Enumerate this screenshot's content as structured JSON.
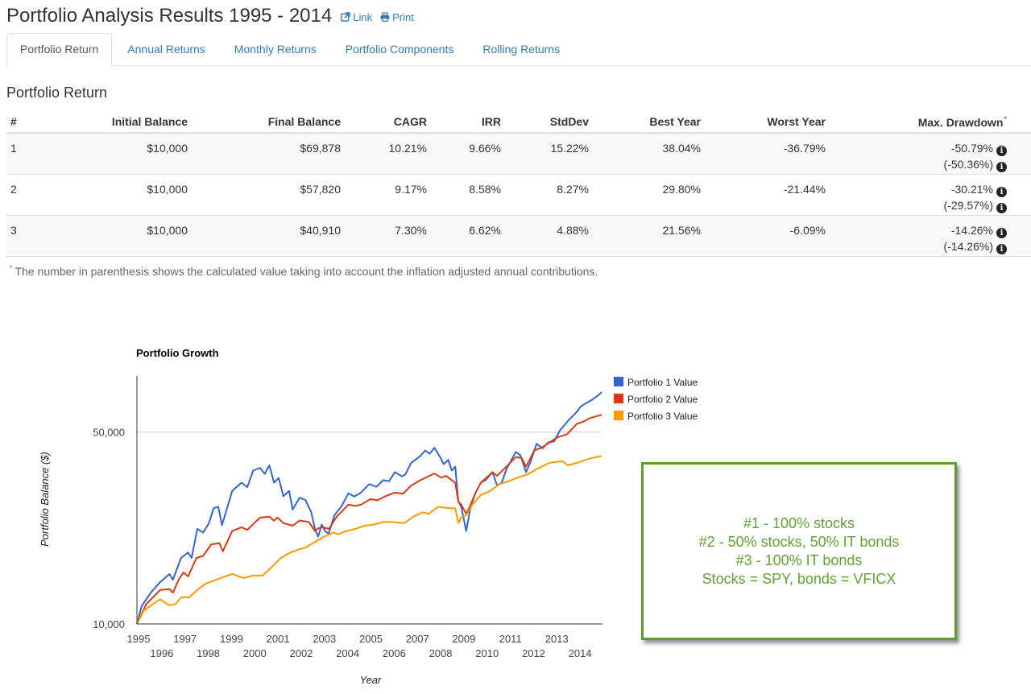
{
  "page": {
    "title": "Portfolio Analysis Results 1995 - 2014",
    "link_label": "Link",
    "link_icon": "external-link-icon",
    "print_label": "Print",
    "print_icon": "print-icon"
  },
  "tabs": [
    {
      "label": "Portfolio Return",
      "active": true
    },
    {
      "label": "Annual Returns",
      "active": false
    },
    {
      "label": "Monthly Returns",
      "active": false
    },
    {
      "label": "Portfolio Components",
      "active": false
    },
    {
      "label": "Rolling Returns",
      "active": false
    }
  ],
  "section_title": "Portfolio Return",
  "table": {
    "columns": [
      "#",
      "Initial Balance",
      "Final Balance",
      "CAGR",
      "IRR",
      "StdDev",
      "Best Year",
      "Worst Year",
      "Max. Drawdown"
    ],
    "max_drawdown_marker": "*",
    "info_icon": "info-circle-icon",
    "rows": [
      {
        "num": "1",
        "initial": "$10,000",
        "final": "$69,878",
        "cagr": "10.21%",
        "irr": "9.66%",
        "stddev": "15.22%",
        "best": "38.04%",
        "worst": "-36.79%",
        "max_dd": "-50.79%",
        "max_dd_adj": "(-50.36%)"
      },
      {
        "num": "2",
        "initial": "$10,000",
        "final": "$57,820",
        "cagr": "9.17%",
        "irr": "8.58%",
        "stddev": "8.27%",
        "best": "29.80%",
        "worst": "-21.44%",
        "max_dd": "-30.21%",
        "max_dd_adj": "(-29.57%)"
      },
      {
        "num": "3",
        "initial": "$10,000",
        "final": "$40,910",
        "cagr": "7.30%",
        "irr": "6.62%",
        "stddev": "4.88%",
        "best": "21.56%",
        "worst": "-6.09%",
        "max_dd": "-14.26%",
        "max_dd_adj": "(-14.26%)"
      }
    ]
  },
  "footnote": {
    "marker": "*",
    "text": "The number in parenthesis shows the calculated value taking into account the inflation adjusted annual contributions."
  },
  "note_box": {
    "lines": [
      "#1 - 100% stocks",
      "#2 - 50% stocks, 50% IT bonds",
      "#3 - 100% IT bonds",
      "Stocks = SPY, bonds = VFICX"
    ],
    "color": "#63a135"
  },
  "chart_data": {
    "type": "line",
    "title": "Portfolio Growth",
    "xlabel": "Year",
    "ylabel": "Portfolio Balance ($)",
    "yscale": "log",
    "xlim": [
      1995,
      2015
    ],
    "ylim": [
      10000,
      80000
    ],
    "grid": true,
    "legend": "right",
    "yticks": [
      {
        "value": 10000,
        "label": "10,000"
      },
      {
        "value": 50000,
        "label": "50,000"
      }
    ],
    "xticks": [
      "1995",
      "1996",
      "1997",
      "1998",
      "1999",
      "2000",
      "2001",
      "2002",
      "2003",
      "2004",
      "2005",
      "2006",
      "2007",
      "2008",
      "2009",
      "2010",
      "2011",
      "2012",
      "2013",
      "2014"
    ],
    "series": [
      {
        "name": "Portfolio 1 Value",
        "color": "#3366cc",
        "points": [
          [
            1995.0,
            10000
          ],
          [
            1995.2,
            11600
          ],
          [
            1995.6,
            13000
          ],
          [
            1996.0,
            14200
          ],
          [
            1996.4,
            15200
          ],
          [
            1996.55,
            14500
          ],
          [
            1996.9,
            17400
          ],
          [
            1997.2,
            18200
          ],
          [
            1997.35,
            17400
          ],
          [
            1997.6,
            22200
          ],
          [
            1997.85,
            21500
          ],
          [
            1998.1,
            23300
          ],
          [
            1998.3,
            26400
          ],
          [
            1998.5,
            26700
          ],
          [
            1998.66,
            22900
          ],
          [
            1999.1,
            30500
          ],
          [
            1999.5,
            32700
          ],
          [
            1999.75,
            31500
          ],
          [
            2000.0,
            36200
          ],
          [
            2000.3,
            37000
          ],
          [
            2000.5,
            35200
          ],
          [
            2000.7,
            37800
          ],
          [
            2000.9,
            32700
          ],
          [
            2001.1,
            34000
          ],
          [
            2001.3,
            29200
          ],
          [
            2001.55,
            30500
          ],
          [
            2001.7,
            26100
          ],
          [
            2002.0,
            28800
          ],
          [
            2002.25,
            28300
          ],
          [
            2002.5,
            25500
          ],
          [
            2002.66,
            22200
          ],
          [
            2002.8,
            20800
          ],
          [
            2002.95,
            23000
          ],
          [
            2003.1,
            21800
          ],
          [
            2003.25,
            21300
          ],
          [
            2003.5,
            24900
          ],
          [
            2003.8,
            26800
          ],
          [
            2004.1,
            29900
          ],
          [
            2004.35,
            29100
          ],
          [
            2004.6,
            29900
          ],
          [
            2005.0,
            32300
          ],
          [
            2005.3,
            31600
          ],
          [
            2005.6,
            33400
          ],
          [
            2005.85,
            33100
          ],
          [
            2006.1,
            35700
          ],
          [
            2006.4,
            34500
          ],
          [
            2006.55,
            35000
          ],
          [
            2006.8,
            38600
          ],
          [
            2007.2,
            40900
          ],
          [
            2007.4,
            42800
          ],
          [
            2007.6,
            41700
          ],
          [
            2007.8,
            43800
          ],
          [
            2008.05,
            40500
          ],
          [
            2008.2,
            38200
          ],
          [
            2008.4,
            39600
          ],
          [
            2008.55,
            36200
          ],
          [
            2008.7,
            37400
          ],
          [
            2008.83,
            27900
          ],
          [
            2008.96,
            26700
          ],
          [
            2009.17,
            21800
          ],
          [
            2009.36,
            26700
          ],
          [
            2009.56,
            29900
          ],
          [
            2009.8,
            32700
          ],
          [
            2010.0,
            33400
          ],
          [
            2010.3,
            35700
          ],
          [
            2010.5,
            31900
          ],
          [
            2010.7,
            32700
          ],
          [
            2010.9,
            36600
          ],
          [
            2011.3,
            42300
          ],
          [
            2011.5,
            41200
          ],
          [
            2011.75,
            35700
          ],
          [
            2011.95,
            39200
          ],
          [
            2012.2,
            45300
          ],
          [
            2012.45,
            43600
          ],
          [
            2012.7,
            45800
          ],
          [
            2012.95,
            46200
          ],
          [
            2013.2,
            50700
          ],
          [
            2013.4,
            53000
          ],
          [
            2013.6,
            55500
          ],
          [
            2013.94,
            59300
          ],
          [
            2014.1,
            62000
          ],
          [
            2014.3,
            63500
          ],
          [
            2014.6,
            65700
          ],
          [
            2014.8,
            67500
          ],
          [
            2015.0,
            69900
          ]
        ]
      },
      {
        "name": "Portfolio 2 Value",
        "color": "#dc3912",
        "points": [
          [
            1995.0,
            10000
          ],
          [
            1995.4,
            11800
          ],
          [
            1996.0,
            13300
          ],
          [
            1996.4,
            13400
          ],
          [
            1996.55,
            13000
          ],
          [
            1996.8,
            14500
          ],
          [
            1997.0,
            15400
          ],
          [
            1997.2,
            14900
          ],
          [
            1997.56,
            17400
          ],
          [
            1997.85,
            17700
          ],
          [
            1998.2,
            19500
          ],
          [
            1998.55,
            19700
          ],
          [
            1998.7,
            18400
          ],
          [
            1999.1,
            21800
          ],
          [
            1999.5,
            22500
          ],
          [
            1999.75,
            22000
          ],
          [
            2000.1,
            23500
          ],
          [
            2000.3,
            24400
          ],
          [
            2000.7,
            24600
          ],
          [
            2000.9,
            23800
          ],
          [
            2001.05,
            24400
          ],
          [
            2001.3,
            23300
          ],
          [
            2001.7,
            22800
          ],
          [
            2002.0,
            23800
          ],
          [
            2002.4,
            23500
          ],
          [
            2002.66,
            21800
          ],
          [
            2002.8,
            22300
          ],
          [
            2003.0,
            22500
          ],
          [
            2003.26,
            22200
          ],
          [
            2003.6,
            24600
          ],
          [
            2004.1,
            27200
          ],
          [
            2004.4,
            26900
          ],
          [
            2004.65,
            27200
          ],
          [
            2005.05,
            28500
          ],
          [
            2005.35,
            28200
          ],
          [
            2005.7,
            29200
          ],
          [
            2006.1,
            30100
          ],
          [
            2006.45,
            29800
          ],
          [
            2006.8,
            31900
          ],
          [
            2007.2,
            33400
          ],
          [
            2007.45,
            34200
          ],
          [
            2007.8,
            35300
          ],
          [
            2008.1,
            34100
          ],
          [
            2008.3,
            34600
          ],
          [
            2008.55,
            33400
          ],
          [
            2008.7,
            32700
          ],
          [
            2008.83,
            27900
          ],
          [
            2008.96,
            27200
          ],
          [
            2009.17,
            25200
          ],
          [
            2009.36,
            27200
          ],
          [
            2009.56,
            29900
          ],
          [
            2009.8,
            32700
          ],
          [
            2010.3,
            35700
          ],
          [
            2010.5,
            34600
          ],
          [
            2010.9,
            37400
          ],
          [
            2011.3,
            40500
          ],
          [
            2011.55,
            40200
          ],
          [
            2011.75,
            37400
          ],
          [
            2012.1,
            42800
          ],
          [
            2012.45,
            44000
          ],
          [
            2012.75,
            45800
          ],
          [
            2013.1,
            47900
          ],
          [
            2013.5,
            49000
          ],
          [
            2013.94,
            53600
          ],
          [
            2014.2,
            54500
          ],
          [
            2014.47,
            56100
          ],
          [
            2014.75,
            57000
          ],
          [
            2015.0,
            57800
          ]
        ]
      },
      {
        "name": "Portfolio 3 Value",
        "color": "#ff9900",
        "points": [
          [
            1995.0,
            10000
          ],
          [
            1995.3,
            11200
          ],
          [
            1996.0,
            12300
          ],
          [
            1996.37,
            11700
          ],
          [
            1996.65,
            11800
          ],
          [
            1996.9,
            12500
          ],
          [
            1997.25,
            12500
          ],
          [
            1997.6,
            13300
          ],
          [
            1997.95,
            14000
          ],
          [
            1998.7,
            14800
          ],
          [
            1999.1,
            15200
          ],
          [
            1999.6,
            14700
          ],
          [
            2000.0,
            15000
          ],
          [
            2000.4,
            15000
          ],
          [
            2000.8,
            16100
          ],
          [
            2001.2,
            17400
          ],
          [
            2001.6,
            18200
          ],
          [
            2001.9,
            18600
          ],
          [
            2002.27,
            19000
          ],
          [
            2002.66,
            19900
          ],
          [
            2003.06,
            20800
          ],
          [
            2003.46,
            21500
          ],
          [
            2003.65,
            21200
          ],
          [
            2004.0,
            21800
          ],
          [
            2004.4,
            22200
          ],
          [
            2004.8,
            22800
          ],
          [
            2005.2,
            23000
          ],
          [
            2005.6,
            23500
          ],
          [
            2006.0,
            23500
          ],
          [
            2006.5,
            23300
          ],
          [
            2006.9,
            24600
          ],
          [
            2007.3,
            25500
          ],
          [
            2007.55,
            25200
          ],
          [
            2007.97,
            26700
          ],
          [
            2008.4,
            26400
          ],
          [
            2008.7,
            26400
          ],
          [
            2008.83,
            23300
          ],
          [
            2008.96,
            24400
          ],
          [
            2009.17,
            24900
          ],
          [
            2009.43,
            27200
          ],
          [
            2009.8,
            29500
          ],
          [
            2010.2,
            30500
          ],
          [
            2010.6,
            32300
          ],
          [
            2011.0,
            33100
          ],
          [
            2011.4,
            34200
          ],
          [
            2011.8,
            35000
          ],
          [
            2012.2,
            36600
          ],
          [
            2012.75,
            38600
          ],
          [
            2013.3,
            39200
          ],
          [
            2013.54,
            37800
          ],
          [
            2013.94,
            38600
          ],
          [
            2014.47,
            40000
          ],
          [
            2015.0,
            40900
          ]
        ]
      }
    ]
  }
}
